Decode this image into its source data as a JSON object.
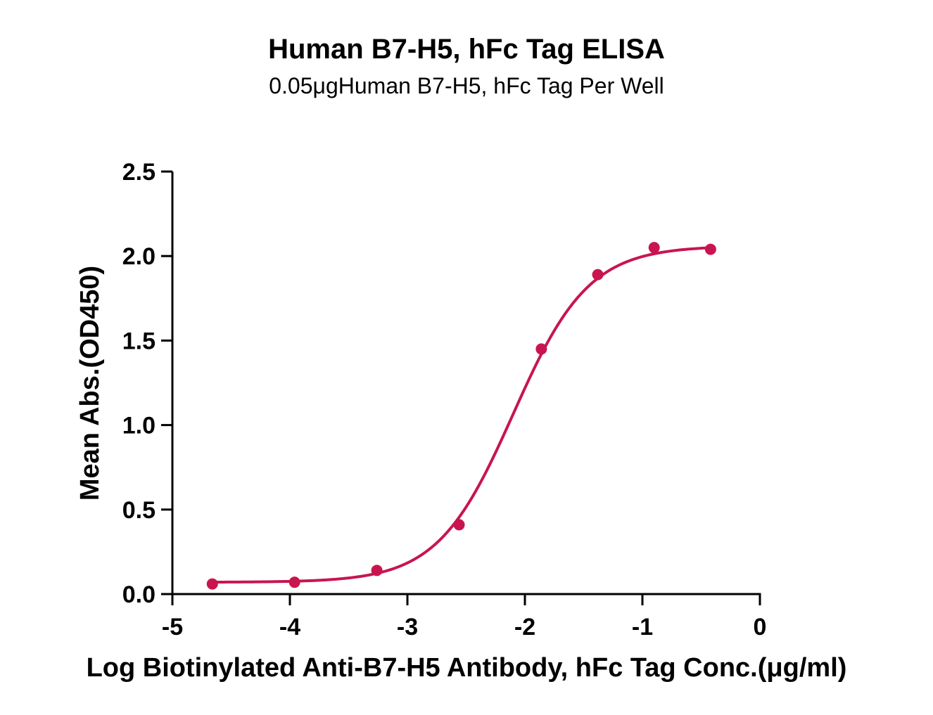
{
  "colors": {
    "series": "#c8154f",
    "axis": "#000000"
  },
  "chart_data": {
    "type": "scatter",
    "title": "Human B7-H5, hFc Tag ELISA",
    "subtitle": "0.05μgHuman B7-H5, hFc Tag Per Well",
    "xlabel": "Log Biotinylated Anti-B7-H5 Antibody, hFc Tag Conc.(μg/ml)",
    "ylabel": "Mean Abs.(OD450)",
    "xlim": [
      -5,
      0
    ],
    "ylim": [
      0,
      2.5
    ],
    "x_ticks": [
      -5,
      -4,
      -3,
      -2,
      -1,
      0
    ],
    "x_tick_labels": [
      "-5",
      "-4",
      "-3",
      "-2",
      "-1",
      "0"
    ],
    "y_ticks": [
      0,
      0.5,
      1,
      1.5,
      2,
      2.5
    ],
    "y_tick_labels": [
      "0.0",
      "0.5",
      "1.0",
      "1.5",
      "2.0",
      "2.5"
    ],
    "grid": false,
    "series": [
      {
        "x": [
          -4.66,
          -3.96,
          -3.26,
          -2.56,
          -1.86,
          -1.38,
          -0.9,
          -0.42
        ],
        "y": [
          0.06,
          0.07,
          0.14,
          0.41,
          1.45,
          1.89,
          2.05,
          2.04
        ]
      }
    ],
    "fit_curve": {
      "model": "4PL",
      "bottom": 0.07,
      "top": 2.06,
      "log_ec50": -2.1,
      "hill_slope": 1.35
    }
  }
}
